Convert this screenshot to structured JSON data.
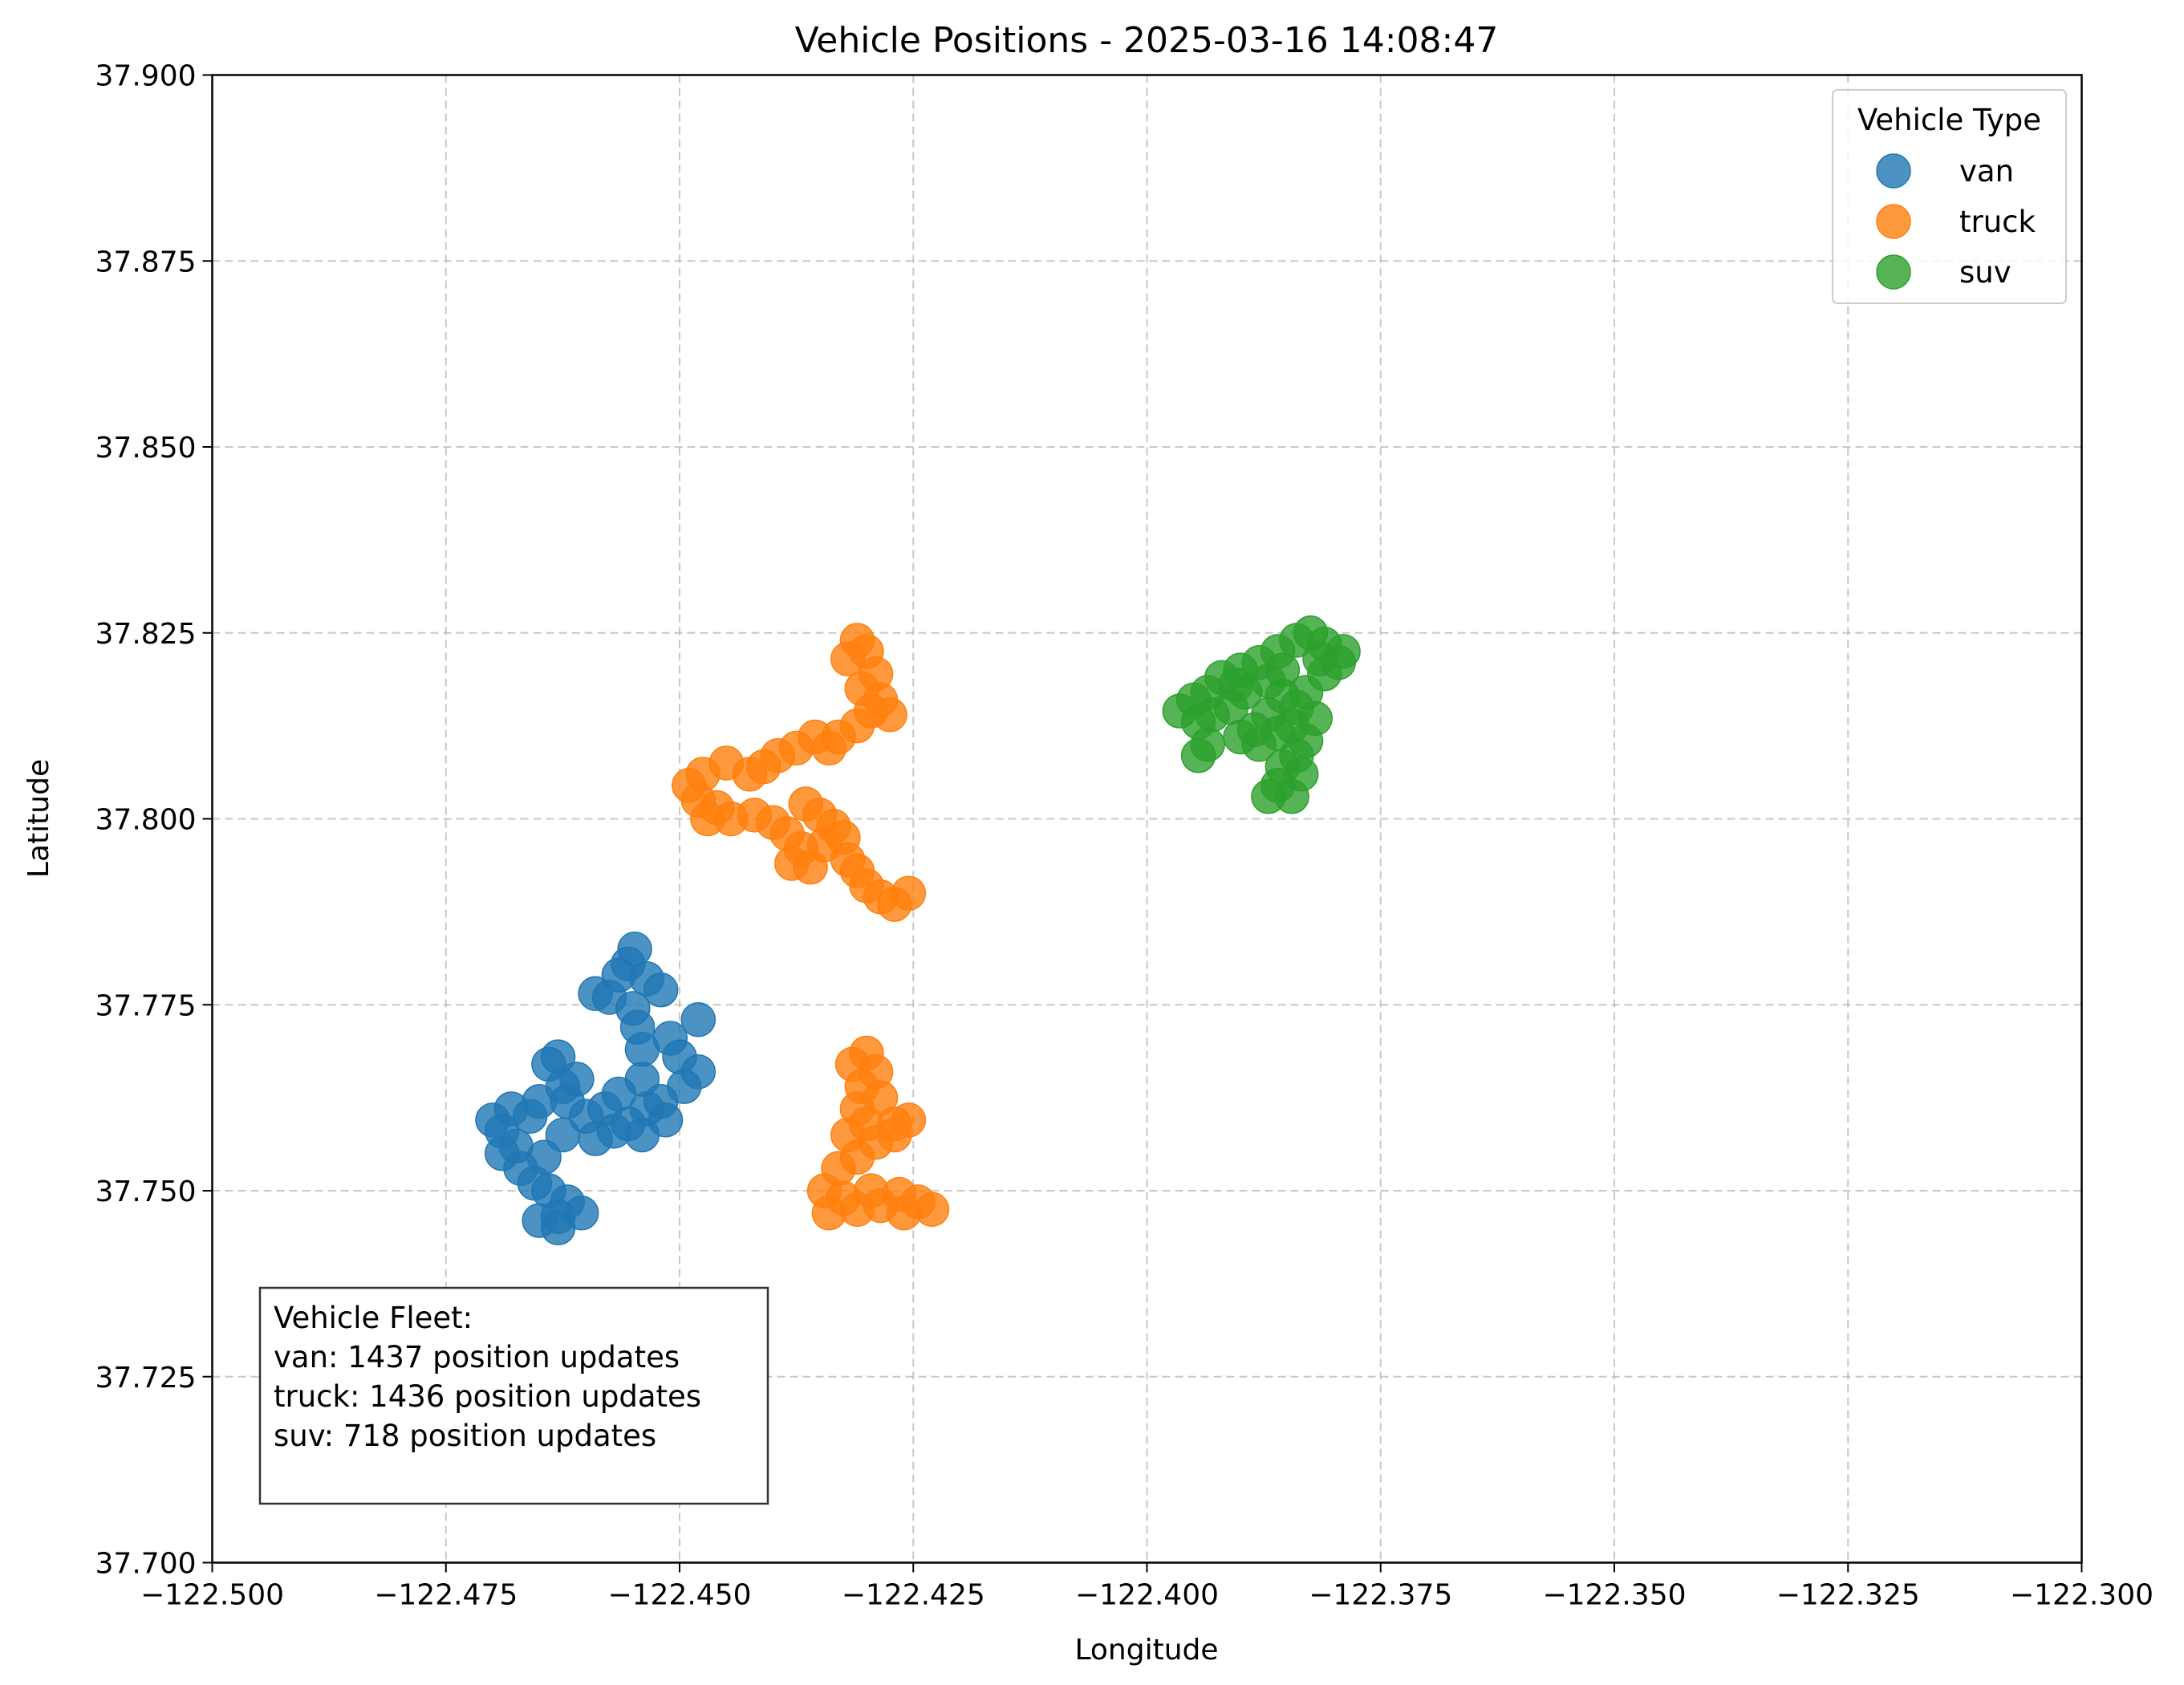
{
  "chart_data": {
    "type": "scatter",
    "title": "Vehicle Positions - 2025-03-16 14:08:47",
    "xlabel": "Longitude",
    "ylabel": "Latitude",
    "xlim": [
      -122.5,
      -122.3
    ],
    "ylim": [
      37.7,
      37.9
    ],
    "xticks": [
      -122.5,
      -122.475,
      -122.45,
      -122.425,
      -122.4,
      -122.375,
      -122.35,
      -122.325,
      -122.3
    ],
    "xtick_labels": [
      "−122.500",
      "−122.475",
      "−122.450",
      "−122.425",
      "−122.400",
      "−122.375",
      "−122.350",
      "−122.325",
      "−122.300"
    ],
    "yticks": [
      37.7,
      37.725,
      37.75,
      37.775,
      37.8,
      37.825,
      37.85,
      37.875,
      37.9
    ],
    "ytick_labels": [
      "37.700",
      "37.725",
      "37.750",
      "37.775",
      "37.800",
      "37.825",
      "37.850",
      "37.875",
      "37.900"
    ],
    "grid": true,
    "legend": {
      "title": "Vehicle Type",
      "placement": "top-right"
    },
    "annotation": {
      "lines": [
        "Vehicle Fleet:",
        "van: 1437 position updates",
        "truck: 1436 position updates",
        "suv: 718 position updates"
      ],
      "placement": "bottom-left"
    },
    "series": [
      {
        "name": "van",
        "color": "#1f77b4",
        "points": [
          [
            -122.4548,
            37.7825
          ],
          [
            -122.4555,
            37.7805
          ],
          [
            -122.4565,
            37.779
          ],
          [
            -122.4535,
            37.7785
          ],
          [
            -122.459,
            37.7765
          ],
          [
            -122.4575,
            37.776
          ],
          [
            -122.452,
            37.777
          ],
          [
            -122.448,
            37.773
          ],
          [
            -122.455,
            37.7745
          ],
          [
            -122.4545,
            37.772
          ],
          [
            -122.454,
            37.769
          ],
          [
            -122.451,
            37.7705
          ],
          [
            -122.45,
            37.768
          ],
          [
            -122.448,
            37.766
          ],
          [
            -122.4495,
            37.764
          ],
          [
            -122.452,
            37.762
          ],
          [
            -122.454,
            37.765
          ],
          [
            -122.4535,
            37.761
          ],
          [
            -122.4515,
            37.7595
          ],
          [
            -122.4555,
            37.759
          ],
          [
            -122.4565,
            37.763
          ],
          [
            -122.458,
            37.761
          ],
          [
            -122.457,
            37.758
          ],
          [
            -122.46,
            37.76
          ],
          [
            -122.462,
            37.762
          ],
          [
            -122.461,
            37.765
          ],
          [
            -122.463,
            37.768
          ],
          [
            -122.464,
            37.767
          ],
          [
            -122.4625,
            37.764
          ],
          [
            -122.465,
            37.762
          ],
          [
            -122.466,
            37.76
          ],
          [
            -122.468,
            37.761
          ],
          [
            -122.47,
            37.7595
          ],
          [
            -122.469,
            37.758
          ],
          [
            -122.4675,
            37.756
          ],
          [
            -122.469,
            37.755
          ],
          [
            -122.467,
            37.753
          ],
          [
            -122.4655,
            37.751
          ],
          [
            -122.464,
            37.75
          ],
          [
            -122.462,
            37.7485
          ],
          [
            -122.4605,
            37.747
          ],
          [
            -122.463,
            37.7465
          ],
          [
            -122.465,
            37.746
          ],
          [
            -122.463,
            37.745
          ],
          [
            -122.4645,
            37.7545
          ],
          [
            -122.4625,
            37.7575
          ],
          [
            -122.454,
            37.7575
          ],
          [
            -122.459,
            37.757
          ]
        ]
      },
      {
        "name": "truck",
        "color": "#ff7f0e",
        "points": [
          [
            -122.431,
            37.824
          ],
          [
            -122.43,
            37.8225
          ],
          [
            -122.432,
            37.8215
          ],
          [
            -122.429,
            37.8195
          ],
          [
            -122.4305,
            37.8175
          ],
          [
            -122.4285,
            37.816
          ],
          [
            -122.4295,
            37.8145
          ],
          [
            -122.4275,
            37.814
          ],
          [
            -122.431,
            37.8125
          ],
          [
            -122.433,
            37.811
          ],
          [
            -122.4355,
            37.811
          ],
          [
            -122.434,
            37.8095
          ],
          [
            -122.4375,
            37.8095
          ],
          [
            -122.4395,
            37.8085
          ],
          [
            -122.441,
            37.807
          ],
          [
            -122.4425,
            37.806
          ],
          [
            -122.445,
            37.8075
          ],
          [
            -122.4475,
            37.806
          ],
          [
            -122.449,
            37.8045
          ],
          [
            -122.448,
            37.8025
          ],
          [
            -122.446,
            37.8015
          ],
          [
            -122.447,
            37.8
          ],
          [
            -122.4445,
            37.8
          ],
          [
            -122.442,
            37.8005
          ],
          [
            -122.44,
            37.7995
          ],
          [
            -122.4385,
            37.798
          ],
          [
            -122.437,
            37.796
          ],
          [
            -122.438,
            37.794
          ],
          [
            -122.436,
            37.7935
          ],
          [
            -122.4345,
            37.7965
          ],
          [
            -122.4335,
            37.799
          ],
          [
            -122.435,
            37.8005
          ],
          [
            -122.4365,
            37.802
          ],
          [
            -122.4325,
            37.7975
          ],
          [
            -122.432,
            37.7945
          ],
          [
            -122.431,
            37.793
          ],
          [
            -122.43,
            37.791
          ],
          [
            -122.4285,
            37.7895
          ],
          [
            -122.427,
            37.7885
          ],
          [
            -122.4255,
            37.79
          ],
          [
            -122.43,
            37.7685
          ],
          [
            -122.4315,
            37.767
          ],
          [
            -122.429,
            37.766
          ],
          [
            -122.4305,
            37.764
          ],
          [
            -122.4285,
            37.7625
          ],
          [
            -122.431,
            37.761
          ],
          [
            -122.43,
            37.759
          ],
          [
            -122.432,
            37.7575
          ],
          [
            -122.429,
            37.7565
          ],
          [
            -122.427,
            37.759
          ],
          [
            -122.4255,
            37.7595
          ],
          [
            -122.427,
            37.7575
          ],
          [
            -122.431,
            37.7545
          ],
          [
            -122.433,
            37.753
          ],
          [
            -122.4345,
            37.75
          ],
          [
            -122.4325,
            37.749
          ],
          [
            -122.434,
            37.747
          ],
          [
            -122.431,
            37.7475
          ],
          [
            -122.4285,
            37.748
          ],
          [
            -122.4265,
            37.7495
          ],
          [
            -122.4245,
            37.7485
          ],
          [
            -122.423,
            37.7475
          ],
          [
            -122.426,
            37.747
          ],
          [
            -122.4295,
            37.75
          ]
        ]
      },
      {
        "name": "suv",
        "color": "#2ca02c",
        "points": [
          [
            -122.3825,
            37.825
          ],
          [
            -122.384,
            37.824
          ],
          [
            -122.381,
            37.8235
          ],
          [
            -122.379,
            37.8225
          ],
          [
            -122.3795,
            37.821
          ],
          [
            -122.386,
            37.8225
          ],
          [
            -122.388,
            37.821
          ],
          [
            -122.39,
            37.82
          ],
          [
            -122.392,
            37.819
          ],
          [
            -122.3935,
            37.817
          ],
          [
            -122.395,
            37.816
          ],
          [
            -122.3965,
            37.8145
          ],
          [
            -122.3945,
            37.813
          ],
          [
            -122.393,
            37.814
          ],
          [
            -122.391,
            37.815
          ],
          [
            -122.3895,
            37.817
          ],
          [
            -122.387,
            37.8185
          ],
          [
            -122.3855,
            37.8165
          ],
          [
            -122.384,
            37.815
          ],
          [
            -122.383,
            37.817
          ],
          [
            -122.387,
            37.814
          ],
          [
            -122.3885,
            37.812
          ],
          [
            -122.39,
            37.811
          ],
          [
            -122.388,
            37.81
          ],
          [
            -122.386,
            37.8115
          ],
          [
            -122.3845,
            37.8125
          ],
          [
            -122.383,
            37.8105
          ],
          [
            -122.384,
            37.8085
          ],
          [
            -122.3855,
            37.807
          ],
          [
            -122.3835,
            37.806
          ],
          [
            -122.386,
            37.8045
          ],
          [
            -122.3845,
            37.803
          ],
          [
            -122.387,
            37.803
          ],
          [
            -122.3945,
            37.8085
          ],
          [
            -122.3935,
            37.81
          ],
          [
            -122.382,
            37.8135
          ],
          [
            -122.381,
            37.8195
          ],
          [
            -122.3815,
            37.8215
          ],
          [
            -122.3855,
            37.82
          ],
          [
            -122.3905,
            37.818
          ]
        ]
      }
    ]
  }
}
